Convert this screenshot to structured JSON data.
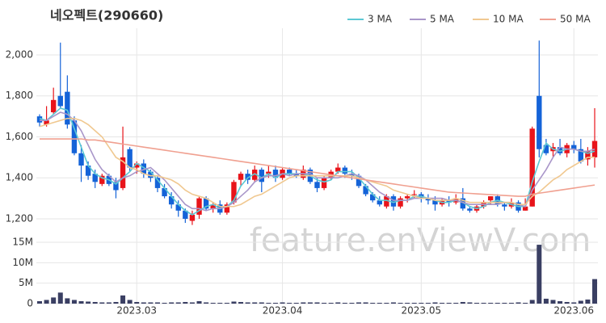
{
  "chart_data": {
    "type": "candlestick",
    "title": "네오펙트(290660)",
    "watermark": "feature.enViewV.com",
    "categories": [
      null,
      null,
      null,
      null,
      null,
      null,
      null,
      null,
      null,
      null,
      null,
      null,
      null,
      null,
      "2023.03",
      null,
      null,
      null,
      null,
      null,
      null,
      null,
      null,
      null,
      null,
      null,
      null,
      null,
      null,
      null,
      null,
      null,
      null,
      null,
      null,
      "2023.04",
      null,
      null,
      null,
      null,
      null,
      null,
      null,
      null,
      null,
      null,
      null,
      null,
      null,
      null,
      null,
      null,
      null,
      null,
      null,
      "2023.05",
      null,
      null,
      null,
      null,
      null,
      null,
      null,
      null,
      null,
      null,
      null,
      null,
      null,
      null,
      null,
      null,
      null,
      null,
      null,
      null,
      null,
      "2023.06",
      null,
      null,
      null
    ],
    "open": [
      1700,
      1660,
      1720,
      1800,
      1820,
      1680,
      1520,
      1460,
      1420,
      1370,
      1410,
      1380,
      1350,
      1540,
      1450,
      1470,
      1430,
      1400,
      1350,
      1310,
      1270,
      1240,
      1190,
      1220,
      1300,
      1250,
      1270,
      1230,
      1280,
      1390,
      1420,
      1390,
      1440,
      1420,
      1440,
      1400,
      1440,
      1420,
      1400,
      1440,
      1380,
      1350,
      1400,
      1430,
      1450,
      1420,
      1410,
      1360,
      1320,
      1290,
      1260,
      1310,
      1260,
      1300,
      1320,
      1320,
      1300,
      1290,
      1270,
      1290,
      1280,
      1300,
      1250,
      1240,
      1260,
      1290,
      1310,
      1270,
      1260,
      1280,
      1240,
      1260,
      1800,
      1560,
      1530,
      1550,
      1520,
      1560,
      1540,
      1490,
      1500
    ],
    "high": [
      1710,
      1750,
      1840,
      2060,
      1900,
      1700,
      1560,
      1480,
      1440,
      1420,
      1420,
      1400,
      1650,
      1550,
      1480,
      1490,
      1440,
      1410,
      1370,
      1330,
      1290,
      1250,
      1240,
      1310,
      1310,
      1280,
      1290,
      1280,
      1390,
      1430,
      1440,
      1460,
      1450,
      1460,
      1460,
      1450,
      1450,
      1440,
      1460,
      1450,
      1400,
      1410,
      1440,
      1470,
      1460,
      1440,
      1420,
      1370,
      1330,
      1310,
      1320,
      1320,
      1310,
      1320,
      1340,
      1330,
      1320,
      1310,
      1300,
      1310,
      1320,
      1350,
      1260,
      1270,
      1290,
      1310,
      1320,
      1280,
      1300,
      1290,
      1300,
      1650,
      2070,
      1590,
      1570,
      1590,
      1570,
      1580,
      1590,
      1550,
      1740
    ],
    "low": [
      1650,
      1650,
      1710,
      1740,
      1640,
      1510,
      1380,
      1390,
      1350,
      1360,
      1360,
      1300,
      1340,
      1430,
      1420,
      1400,
      1380,
      1330,
      1300,
      1250,
      1210,
      1180,
      1170,
      1200,
      1240,
      1230,
      1220,
      1220,
      1270,
      1360,
      1370,
      1380,
      1330,
      1400,
      1380,
      1390,
      1410,
      1400,
      1390,
      1370,
      1330,
      1340,
      1390,
      1420,
      1400,
      1390,
      1350,
      1310,
      1280,
      1260,
      1250,
      1240,
      1250,
      1280,
      1300,
      1280,
      1270,
      1240,
      1260,
      1260,
      1270,
      1240,
      1230,
      1230,
      1250,
      1270,
      1260,
      1240,
      1250,
      1230,
      1240,
      1260,
      1500,
      1510,
      1500,
      1510,
      1500,
      1520,
      1470,
      1460,
      1450
    ],
    "close": [
      1670,
      1680,
      1780,
      1750,
      1660,
      1520,
      1460,
      1410,
      1380,
      1410,
      1370,
      1340,
      1500,
      1450,
      1470,
      1420,
      1400,
      1350,
      1310,
      1270,
      1240,
      1200,
      1220,
      1300,
      1250,
      1270,
      1230,
      1270,
      1380,
      1420,
      1390,
      1440,
      1380,
      1430,
      1400,
      1440,
      1420,
      1410,
      1440,
      1380,
      1350,
      1400,
      1430,
      1450,
      1420,
      1410,
      1360,
      1320,
      1290,
      1270,
      1310,
      1260,
      1300,
      1310,
      1320,
      1300,
      1290,
      1270,
      1290,
      1280,
      1300,
      1250,
      1240,
      1260,
      1280,
      1310,
      1270,
      1260,
      1280,
      1240,
      1260,
      1640,
      1540,
      1520,
      1550,
      1520,
      1560,
      1540,
      1480,
      1530,
      1580
    ],
    "up_color": "#e8141a",
    "down_color": "#1463d8",
    "ylim": [
      1125,
      2130
    ],
    "yticks": [
      {
        "value": 1200,
        "label": "1,200"
      },
      {
        "value": 1400,
        "label": "1,400"
      },
      {
        "value": 1600,
        "label": "1,600"
      },
      {
        "value": 1800,
        "label": "1,800"
      },
      {
        "value": 2000,
        "label": "2,000"
      }
    ],
    "grid": true,
    "legend": "top-right",
    "moving_averages": [
      {
        "name": "3 MA",
        "color": "#5cc8d4",
        "values": [
          1690,
          1680,
          1710,
          1740,
          1730,
          1640,
          1550,
          1460,
          1420,
          1400,
          1390,
          1370,
          1400,
          1430,
          1470,
          1450,
          1430,
          1390,
          1350,
          1310,
          1270,
          1240,
          1220,
          1240,
          1260,
          1270,
          1250,
          1260,
          1290,
          1360,
          1400,
          1420,
          1400,
          1420,
          1400,
          1420,
          1420,
          1420,
          1420,
          1410,
          1390,
          1380,
          1390,
          1430,
          1430,
          1430,
          1400,
          1360,
          1320,
          1290,
          1290,
          1280,
          1290,
          1290,
          1310,
          1310,
          1300,
          1290,
          1280,
          1280,
          1290,
          1280,
          1260,
          1250,
          1260,
          1280,
          1290,
          1280,
          1270,
          1260,
          1260,
          1380,
          1480,
          1570,
          1540,
          1530,
          1540,
          1540,
          1530,
          1520,
          1530
        ]
      },
      {
        "name": "5 MA",
        "color": "#a996c9",
        "values": [
          1680,
          1680,
          1700,
          1720,
          1710,
          1680,
          1630,
          1560,
          1490,
          1440,
          1410,
          1380,
          1400,
          1410,
          1430,
          1440,
          1450,
          1420,
          1390,
          1350,
          1310,
          1270,
          1250,
          1250,
          1240,
          1250,
          1250,
          1260,
          1280,
          1310,
          1340,
          1380,
          1400,
          1410,
          1410,
          1420,
          1410,
          1420,
          1420,
          1420,
          1400,
          1400,
          1400,
          1400,
          1410,
          1420,
          1410,
          1390,
          1360,
          1330,
          1310,
          1290,
          1290,
          1290,
          1300,
          1300,
          1300,
          1300,
          1300,
          1290,
          1290,
          1280,
          1270,
          1270,
          1270,
          1270,
          1270,
          1280,
          1280,
          1270,
          1260,
          1340,
          1390,
          1440,
          1500,
          1550,
          1540,
          1540,
          1530,
          1530,
          1540
        ]
      },
      {
        "name": "10 MA",
        "color": "#f0c890",
        "values": [
          1650,
          1660,
          1670,
          1680,
          1690,
          1690,
          1680,
          1660,
          1630,
          1600,
          1550,
          1500,
          1480,
          1450,
          1440,
          1420,
          1410,
          1410,
          1400,
          1390,
          1370,
          1340,
          1320,
          1310,
          1300,
          1280,
          1260,
          1260,
          1260,
          1270,
          1290,
          1310,
          1320,
          1340,
          1360,
          1380,
          1400,
          1410,
          1410,
          1410,
          1410,
          1410,
          1410,
          1410,
          1410,
          1410,
          1400,
          1390,
          1380,
          1370,
          1360,
          1340,
          1330,
          1320,
          1310,
          1300,
          1300,
          1290,
          1290,
          1290,
          1300,
          1290,
          1280,
          1280,
          1280,
          1280,
          1280,
          1280,
          1280,
          1270,
          1270,
          1310,
          1330,
          1360,
          1390,
          1410,
          1440,
          1460,
          1480,
          1500,
          1500
        ]
      },
      {
        "name": "50 MA",
        "color": "#f0a090",
        "values": [
          1590,
          1590,
          1590,
          1590,
          1590,
          1590,
          1590,
          1585,
          1585,
          1580,
          1575,
          1570,
          1565,
          1560,
          1555,
          1550,
          1545,
          1540,
          1535,
          1530,
          1525,
          1520,
          1515,
          1510,
          1505,
          1500,
          1495,
          1490,
          1485,
          1480,
          1475,
          1470,
          1465,
          1460,
          1455,
          1450,
          1445,
          1440,
          1435,
          1430,
          1425,
          1420,
          1415,
          1410,
          1405,
          1400,
          1395,
          1390,
          1385,
          1380,
          1375,
          1370,
          1365,
          1360,
          1355,
          1350,
          1345,
          1340,
          1335,
          1330,
          1328,
          1326,
          1324,
          1322,
          1320,
          1318,
          1316,
          1314,
          1312,
          1310,
          1310,
          1320,
          1325,
          1330,
          1335,
          1340,
          1345,
          1350,
          1355,
          1360,
          1365
        ]
      }
    ],
    "volume": {
      "color": "#3a3f63",
      "values": [
        600000,
        900000,
        1500000,
        2700000,
        1300000,
        900000,
        600000,
        500000,
        400000,
        300000,
        300000,
        400000,
        2000000,
        900000,
        400000,
        300000,
        300000,
        300000,
        200000,
        300000,
        300000,
        400000,
        300000,
        600000,
        300000,
        200000,
        200000,
        200000,
        500000,
        400000,
        300000,
        300000,
        300000,
        200000,
        200000,
        300000,
        200000,
        200000,
        300000,
        300000,
        300000,
        200000,
        200000,
        300000,
        200000,
        200000,
        300000,
        300000,
        200000,
        200000,
        200000,
        300000,
        200000,
        200000,
        200000,
        200000,
        200000,
        300000,
        200000,
        200000,
        200000,
        400000,
        300000,
        200000,
        200000,
        200000,
        200000,
        200000,
        200000,
        300000,
        200000,
        900000,
        14400000,
        1200000,
        900000,
        600000,
        400000,
        300000,
        700000,
        1000000,
        6000000
      ],
      "ylim": [
        0,
        15800000
      ],
      "yticks": [
        0,
        {
          "value": 5000000,
          "label": "5M"
        },
        {
          "value": 10000000,
          "label": "10M"
        },
        {
          "value": 15000000,
          "label": "15M"
        }
      ]
    }
  }
}
